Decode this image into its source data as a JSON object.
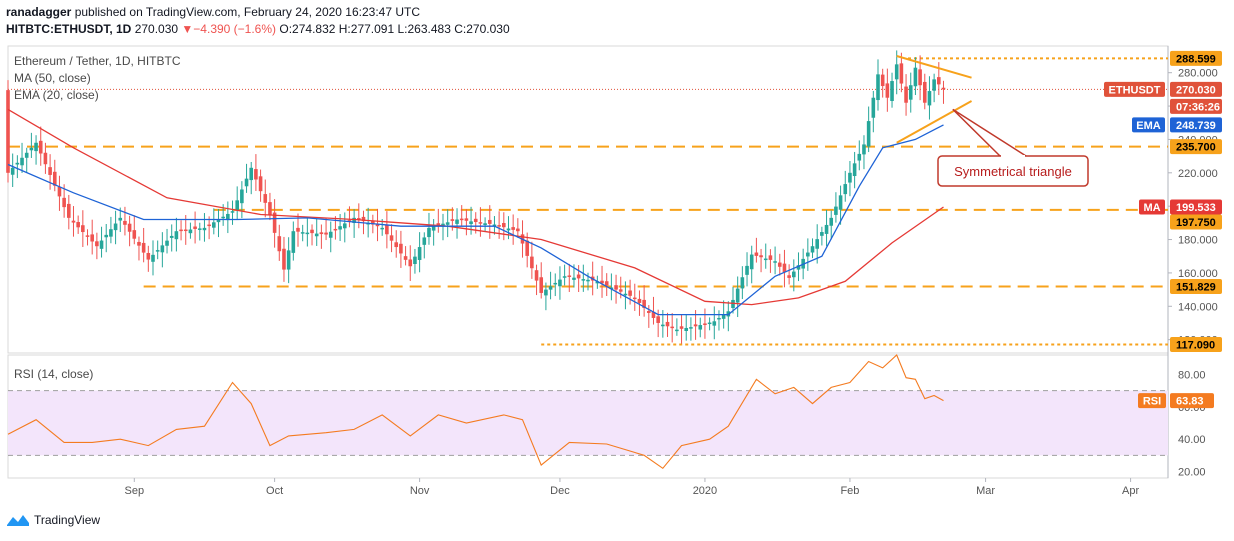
{
  "header": {
    "line1": {
      "user": "ranadagger",
      "rest": " published on TradingView.com, February 24, 2020 16:23:47 UTC"
    },
    "line2": {
      "symbol": "HITBTC:ETHUSDT, 1D",
      "last": "270.030",
      "change": "▼−4.390 (−1.6%)",
      "o": "O:274.832",
      "h": "H:277.091",
      "l": "L:263.483",
      "c": "C:270.030"
    }
  },
  "main_legend": {
    "title": "Ethereum / Tether, 1D, HITBTC",
    "ma": "MA (50, close)",
    "ema": "EMA (20, close)"
  },
  "rsi_legend": "RSI (14, close)",
  "footer": {
    "brand": "TradingView"
  },
  "annotation": "Symmetrical triangle",
  "price_labels": [
    {
      "id": "288",
      "text": "288.599",
      "value": 288.599,
      "bg": "#f7a21b",
      "fg": "#000000"
    },
    {
      "id": "ethusdt-name",
      "text": "ETHUSDT",
      "value": 270.03,
      "bg": "#e0523a",
      "fg": "#ffffff"
    },
    {
      "id": "ethusdt-price",
      "text": "270.030",
      "value": 270.03,
      "bg": "#e0523a",
      "fg": "#ffffff"
    },
    {
      "id": "timer",
      "text": "07:36:26",
      "value": 263.5,
      "bg": "#e0523a",
      "fg": "#ffffff"
    },
    {
      "id": "ema-name",
      "text": "EMA",
      "value": 248.739,
      "bg": "#1e63d6",
      "fg": "#ffffff"
    },
    {
      "id": "ema-price",
      "text": "248.739",
      "value": 248.739,
      "bg": "#1e63d6",
      "fg": "#ffffff"
    },
    {
      "id": "235",
      "text": "235.700",
      "value": 235.7,
      "bg": "#f7a21b",
      "fg": "#000000"
    },
    {
      "id": "ma-name",
      "text": "MA",
      "value": 199.533,
      "bg": "#e53935",
      "fg": "#ffffff"
    },
    {
      "id": "ma-price",
      "text": "199.533",
      "value": 199.533,
      "bg": "#e53935",
      "fg": "#ffffff"
    },
    {
      "id": "197",
      "text": "197.750",
      "value": 197.75,
      "bg": "#f7a21b",
      "fg": "#000000"
    },
    {
      "id": "151",
      "text": "151.829",
      "value": 151.829,
      "bg": "#f7a21b",
      "fg": "#000000"
    },
    {
      "id": "117",
      "text": "117.090",
      "value": 117.09,
      "bg": "#f7a21b",
      "fg": "#000000"
    }
  ],
  "rsi_labels": [
    {
      "id": "rsi-name",
      "text": "RSI",
      "bg": "#f47b20"
    },
    {
      "id": "rsi-value",
      "text": "63.83",
      "bg": "#f47b20"
    }
  ],
  "colors": {
    "up": "#26a69a",
    "down": "#ef5350",
    "ma": "#e53935",
    "ema": "#1e63d6",
    "level": "#f7a21b",
    "rsi": "#f47b20",
    "rsi_band": "#f3e5fb"
  },
  "chart_data": {
    "type": "candlestick",
    "price_axis": {
      "range": [
        112,
        296
      ],
      "ticks": [
        120,
        140,
        160,
        180,
        200,
        220,
        240,
        260,
        280
      ]
    },
    "rsi_axis": {
      "range": [
        16,
        92
      ],
      "ticks": [
        20,
        40,
        60,
        80
      ],
      "bands": [
        30,
        70
      ]
    },
    "x_labels": [
      {
        "label": "Sep",
        "day": 23
      },
      {
        "label": "Oct",
        "day": 53
      },
      {
        "label": "Nov",
        "day": 84
      },
      {
        "label": "Dec",
        "day": 114
      },
      {
        "label": "2020",
        "day": 145
      },
      {
        "label": "Feb",
        "day": 176
      },
      {
        "label": "Mar",
        "day": 205
      },
      {
        "label": "Apr",
        "day": 236
      }
    ],
    "day_range": [
      -4,
      244
    ],
    "levels": [
      288.599,
      235.7,
      197.75,
      151.829,
      117.09
    ],
    "candle_path": [
      [
        -4,
        220
      ],
      [
        2,
        238
      ],
      [
        9,
        193
      ],
      [
        15,
        176
      ],
      [
        20,
        193
      ],
      [
        26,
        168
      ],
      [
        32,
        185
      ],
      [
        38,
        187
      ],
      [
        44,
        197
      ],
      [
        48,
        223
      ],
      [
        52,
        195
      ],
      [
        55,
        162
      ],
      [
        57,
        185
      ],
      [
        64,
        183
      ],
      [
        70,
        193
      ],
      [
        76,
        187
      ],
      [
        82,
        164
      ],
      [
        86,
        187
      ],
      [
        92,
        192
      ],
      [
        100,
        189
      ],
      [
        105,
        185
      ],
      [
        110,
        148
      ],
      [
        115,
        158
      ],
      [
        122,
        155
      ],
      [
        130,
        145
      ],
      [
        135,
        130
      ],
      [
        139,
        126
      ],
      [
        143,
        128
      ],
      [
        147,
        131
      ],
      [
        150,
        137
      ],
      [
        155,
        171
      ],
      [
        160,
        167
      ],
      [
        163,
        157
      ],
      [
        168,
        176
      ],
      [
        172,
        193
      ],
      [
        176,
        220
      ],
      [
        179,
        237
      ],
      [
        182,
        279
      ],
      [
        184,
        265
      ],
      [
        186,
        285
      ],
      [
        188,
        262
      ],
      [
        190,
        283
      ],
      [
        192,
        262
      ],
      [
        194,
        276
      ],
      [
        196,
        270
      ]
    ],
    "ma50_path": [
      [
        -4,
        258
      ],
      [
        10,
        235
      ],
      [
        30,
        205
      ],
      [
        50,
        195
      ],
      [
        70,
        192
      ],
      [
        90,
        188
      ],
      [
        110,
        180
      ],
      [
        130,
        163
      ],
      [
        145,
        143
      ],
      [
        155,
        141
      ],
      [
        165,
        145
      ],
      [
        175,
        155
      ],
      [
        185,
        178
      ],
      [
        196,
        199.5
      ]
    ],
    "ema20_path": [
      [
        -4,
        225
      ],
      [
        10,
        208
      ],
      [
        25,
        192
      ],
      [
        45,
        192
      ],
      [
        60,
        193
      ],
      [
        80,
        188
      ],
      [
        100,
        188
      ],
      [
        110,
        175
      ],
      [
        120,
        158
      ],
      [
        135,
        135
      ],
      [
        150,
        135
      ],
      [
        160,
        158
      ],
      [
        170,
        170
      ],
      [
        178,
        212
      ],
      [
        183,
        235
      ],
      [
        190,
        240
      ],
      [
        196,
        248.7
      ]
    ],
    "rsi_path": [
      [
        -4,
        43
      ],
      [
        2,
        52
      ],
      [
        8,
        38
      ],
      [
        14,
        38
      ],
      [
        20,
        40
      ],
      [
        26,
        36
      ],
      [
        32,
        46
      ],
      [
        38,
        48
      ],
      [
        44,
        75
      ],
      [
        48,
        62
      ],
      [
        52,
        36
      ],
      [
        56,
        42
      ],
      [
        64,
        44
      ],
      [
        70,
        46
      ],
      [
        76,
        55
      ],
      [
        82,
        42
      ],
      [
        88,
        55
      ],
      [
        94,
        50
      ],
      [
        102,
        55
      ],
      [
        106,
        52
      ],
      [
        110,
        24
      ],
      [
        116,
        38
      ],
      [
        124,
        37
      ],
      [
        132,
        30
      ],
      [
        136,
        22
      ],
      [
        140,
        36
      ],
      [
        146,
        40
      ],
      [
        150,
        48
      ],
      [
        156,
        77
      ],
      [
        160,
        68
      ],
      [
        164,
        72
      ],
      [
        168,
        62
      ],
      [
        172,
        72
      ],
      [
        176,
        75
      ],
      [
        180,
        88
      ],
      [
        183,
        84
      ],
      [
        186,
        92
      ],
      [
        188,
        78
      ],
      [
        190,
        77
      ],
      [
        192,
        65
      ],
      [
        194,
        67
      ],
      [
        196,
        63.83
      ]
    ],
    "triangle": {
      "upper": [
        [
          186,
          290
        ],
        [
          202,
          277
        ]
      ],
      "lower": [
        [
          186,
          238
        ],
        [
          202,
          263
        ]
      ]
    }
  }
}
